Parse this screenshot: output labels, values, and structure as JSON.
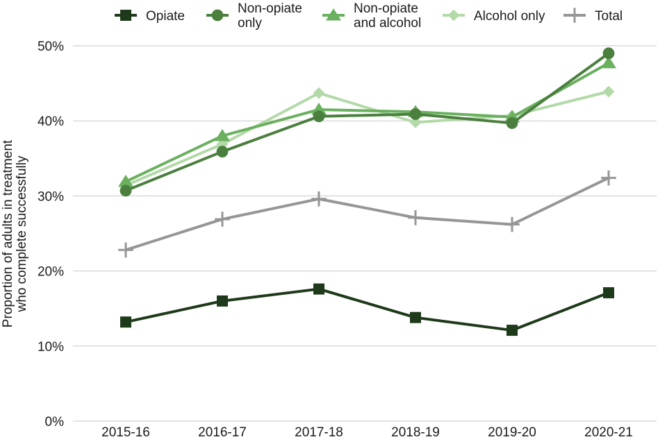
{
  "chart_data": {
    "type": "line",
    "title": "",
    "xlabel": "",
    "ylabel": "Proportion of adults in treatment who complete successfully",
    "ylim": [
      0,
      50
    ],
    "y_unit": "%",
    "y_ticks": [
      0,
      10,
      20,
      30,
      40,
      50
    ],
    "y_tick_labels": [
      "0%",
      "10%",
      "20%",
      "30%",
      "40%",
      "50%"
    ],
    "grid": true,
    "legend_position": "top",
    "categories": [
      "2015-16",
      "2016-17",
      "2017-18",
      "2018-19",
      "2019-20",
      "2020-21"
    ],
    "series": [
      {
        "name": "Total",
        "color": "#969696",
        "marker": "plus",
        "values": [
          22.8,
          26.9,
          29.6,
          27.1,
          26.2,
          32.4
        ]
      },
      {
        "name": "Alcohol only",
        "color": "#b3d9a8",
        "marker": "diamond",
        "values": [
          31.4,
          36.9,
          43.7,
          39.8,
          40.7,
          43.9
        ]
      },
      {
        "name": "Non-opiate and alcohol",
        "color": "#6ab05f",
        "marker": "triangle",
        "values": [
          31.9,
          38.0,
          41.5,
          41.2,
          40.5,
          47.7
        ]
      },
      {
        "name": "Non-opiate only",
        "color": "#4a7f3e",
        "marker": "circle",
        "values": [
          30.7,
          35.9,
          40.6,
          40.9,
          39.7,
          49.0
        ]
      },
      {
        "name": "Opiate",
        "color": "#1e3a1a",
        "marker": "square",
        "values": [
          13.2,
          16.0,
          17.6,
          13.8,
          12.1,
          17.1
        ]
      }
    ]
  },
  "legend": {
    "items": [
      {
        "label_lines": [
          "Opiate"
        ],
        "color": "#1e3a1a",
        "marker": "square"
      },
      {
        "label_lines": [
          "Non-opiate",
          "only"
        ],
        "color": "#4a7f3e",
        "marker": "circle"
      },
      {
        "label_lines": [
          "Non-opiate",
          "and alcohol"
        ],
        "color": "#6ab05f",
        "marker": "triangle"
      },
      {
        "label_lines": [
          "Alcohol only"
        ],
        "color": "#b3d9a8",
        "marker": "diamond"
      },
      {
        "label_lines": [
          "Total"
        ],
        "color": "#969696",
        "marker": "plus"
      }
    ]
  },
  "y_axis_title_lines": [
    "Proportion of adults in treatment",
    "who complete successfully"
  ]
}
